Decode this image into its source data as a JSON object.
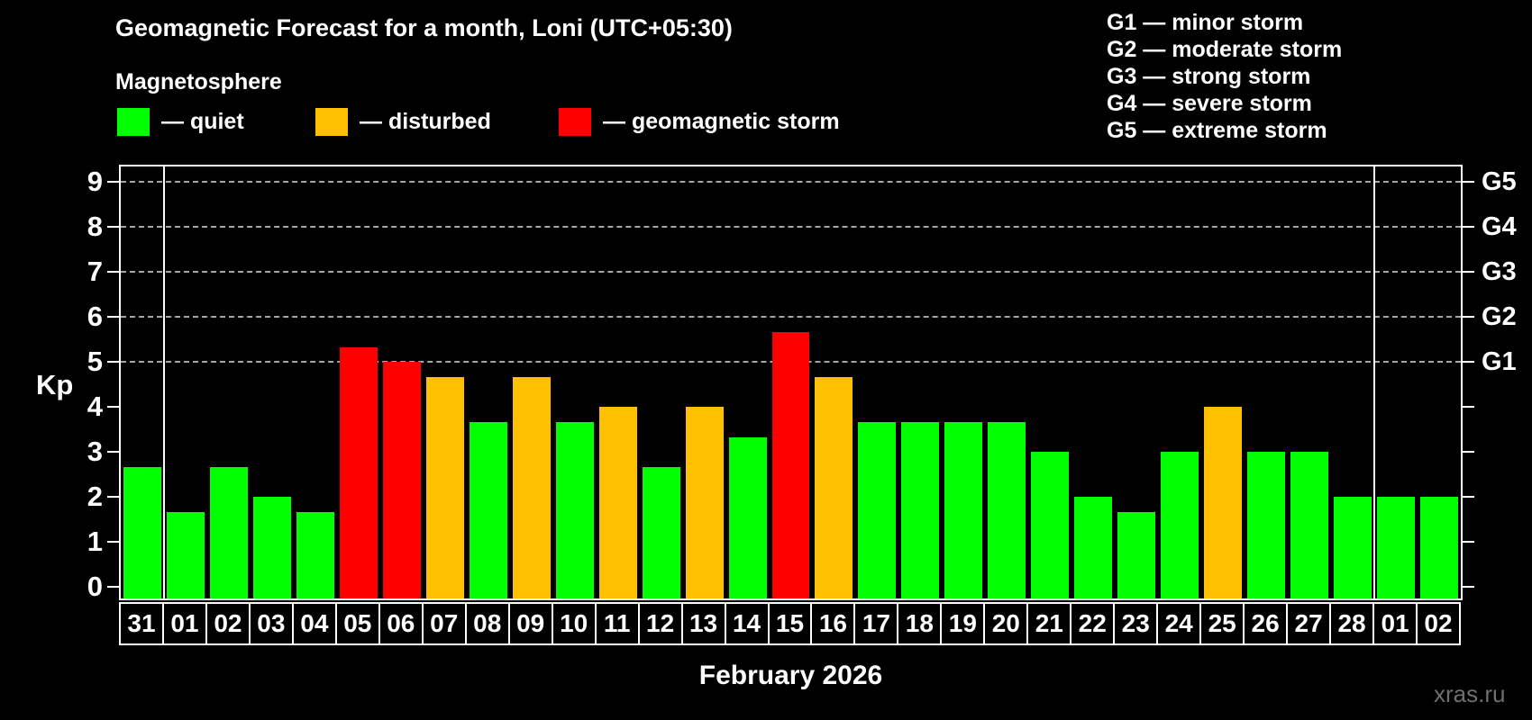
{
  "header": {
    "title": "Geomagnetic Forecast for a month, Loni (UTC+05:30)",
    "subtitle": "Magnetosphere"
  },
  "legend": {
    "items": [
      {
        "status": "quiet",
        "label": "— quiet",
        "color": "#00ff00"
      },
      {
        "status": "disturbed",
        "label": "— disturbed",
        "color": "#ffc000"
      },
      {
        "status": "storm",
        "label": "— geomagnetic storm",
        "color": "#ff0000"
      }
    ]
  },
  "g_scale_legend": {
    "lines": [
      "G1 — minor storm",
      "G2 — moderate storm",
      "G3 — strong storm",
      "G4 — severe storm",
      "G5 — extreme storm"
    ]
  },
  "axes": {
    "y_label": "Kp",
    "y_ticks": [
      0,
      1,
      2,
      3,
      4,
      5,
      6,
      7,
      8,
      9
    ],
    "right_labels": [
      {
        "value": 5,
        "label": "G1"
      },
      {
        "value": 6,
        "label": "G2"
      },
      {
        "value": 7,
        "label": "G3"
      },
      {
        "value": 8,
        "label": "G4"
      },
      {
        "value": 9,
        "label": "G5"
      }
    ]
  },
  "footer": {
    "month_label": "February 2026",
    "watermark": "xras.ru"
  },
  "chart_data": {
    "type": "bar",
    "title": "Geomagnetic Forecast for a month, Loni (UTC+05:30)",
    "subtitle": "Magnetosphere",
    "xlabel": "February 2026",
    "ylabel": "Kp",
    "ylim": [
      0,
      9
    ],
    "grid": "dashed horizontal lines at Kp 5-9 only",
    "gridlines_at": [
      5,
      6,
      7,
      8,
      9
    ],
    "categories": [
      "31",
      "01",
      "02",
      "03",
      "04",
      "05",
      "06",
      "07",
      "08",
      "09",
      "10",
      "11",
      "12",
      "13",
      "14",
      "15",
      "16",
      "17",
      "18",
      "19",
      "20",
      "21",
      "22",
      "23",
      "24",
      "25",
      "26",
      "27",
      "28",
      "01",
      "02"
    ],
    "values": [
      2.67,
      1.67,
      2.67,
      2.0,
      1.67,
      5.33,
      5.0,
      4.67,
      3.67,
      4.67,
      3.67,
      4.0,
      2.67,
      4.0,
      3.33,
      5.67,
      4.67,
      3.67,
      3.67,
      3.67,
      3.67,
      3.0,
      2.0,
      1.67,
      3.0,
      4.0,
      3.0,
      3.0,
      2.0,
      2.0,
      2.0
    ],
    "statuses": [
      "quiet",
      "quiet",
      "quiet",
      "quiet",
      "quiet",
      "storm",
      "storm",
      "disturbed",
      "quiet",
      "disturbed",
      "quiet",
      "disturbed",
      "quiet",
      "disturbed",
      "quiet",
      "storm",
      "disturbed",
      "quiet",
      "quiet",
      "quiet",
      "quiet",
      "quiet",
      "quiet",
      "quiet",
      "quiet",
      "disturbed",
      "quiet",
      "quiet",
      "quiet",
      "quiet",
      "quiet"
    ],
    "status_colors": {
      "quiet": "#00ff00",
      "disturbed": "#ffc000",
      "storm": "#ff0000"
    },
    "month_separators_after_index": [
      0,
      28
    ],
    "right_axis_labels": [
      "G1",
      "G2",
      "G3",
      "G4",
      "G5"
    ],
    "legend_position": "top-left"
  }
}
